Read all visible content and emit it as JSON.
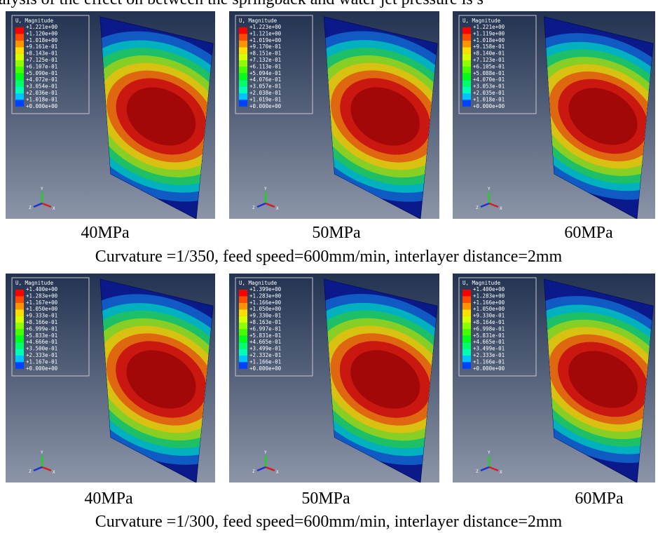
{
  "header": {
    "text": "alysis of the effect on between the springback and water jet pressure is s"
  },
  "rows": [
    {
      "caption": "Curvature =1/350, feed speed=600mm/min, interlayer distance=2mm",
      "panels": [
        {
          "label": "40MPa",
          "legend_title": "U, Magnitude",
          "legend_values": [
            "+1.221e+00",
            "+1.120e+00",
            "+1.018e+00",
            "+9.161e-01",
            "+8.143e-01",
            "+7.125e-01",
            "+6.107e-01",
            "+5.090e-01",
            "+4.072e-01",
            "+3.054e-01",
            "+2.036e-01",
            "+1.018e-01",
            "+0.000e+00"
          ],
          "triad": {
            "y": "Y",
            "z": "Z",
            "x": "X"
          }
        },
        {
          "label": "50MPa",
          "legend_title": "U, Magnitude",
          "legend_values": [
            "+1.223e+00",
            "+1.121e+00",
            "+1.019e+00",
            "+9.170e-01",
            "+8.151e-01",
            "+7.132e-01",
            "+6.113e-01",
            "+5.094e-01",
            "+4.076e-01",
            "+3.057e-01",
            "+2.038e-01",
            "+1.019e-01",
            "+0.000e+00"
          ],
          "triad": {
            "y": "Y",
            "z": "Z",
            "x": "X"
          }
        },
        {
          "label": "60MPa",
          "legend_title": "U, Magnitude",
          "legend_values": [
            "+1.221e+00",
            "+1.119e+00",
            "+1.018e+00",
            "+9.158e-01",
            "+8.140e-01",
            "+7.123e-01",
            "+6.105e-01",
            "+5.088e-01",
            "+4.070e-01",
            "+3.053e-01",
            "+2.035e-01",
            "+1.018e-01",
            "+0.000e+00"
          ],
          "triad": {
            "y": "Y",
            "z": "Z",
            "x": "X"
          }
        }
      ]
    },
    {
      "caption": "Curvature =1/300, feed speed=600mm/min, interlayer distance=2mm",
      "panels": [
        {
          "label": "40MPa",
          "legend_title": "U, Magnitude",
          "legend_values": [
            "+1.400e+00",
            "+1.283e+00",
            "+1.167e+00",
            "+1.050e+00",
            "+9.333e-01",
            "+8.166e-01",
            "+6.999e-01",
            "+5.833e-01",
            "+4.666e-01",
            "+3.500e-01",
            "+2.333e-01",
            "+1.167e-01",
            "+0.000e+00"
          ],
          "triad": {
            "y": "Y",
            "z": "Z",
            "x": "X"
          }
        },
        {
          "label": "50MPa",
          "legend_title": "U, Magnitude",
          "legend_values": [
            "+1.399e+00",
            "+1.283e+00",
            "+1.166e+00",
            "+1.050e+00",
            "+9.330e-01",
            "+8.163e-01",
            "+6.997e-01",
            "+5.831e-01",
            "+4.665e-01",
            "+3.499e-01",
            "+2.332e-01",
            "+1.166e-01",
            "+0.000e+00"
          ],
          "triad": {
            "y": "Y",
            "z": "Z",
            "x": "X"
          }
        },
        {
          "label": "60MPa",
          "legend_title": "U, Magnitude",
          "legend_values": [
            "+1.400e+00",
            "+1.283e+00",
            "+1.166e+00",
            "+1.050e+00",
            "+9.330e-01",
            "+8.164e-01",
            "+6.998e-01",
            "+5.831e-01",
            "+4.665e-01",
            "+3.499e-01",
            "+2.333e-01",
            "+1.166e-01",
            "+0.000e+00"
          ],
          "triad": {
            "y": "Y",
            "z": "Z",
            "x": "X"
          }
        }
      ]
    }
  ]
}
